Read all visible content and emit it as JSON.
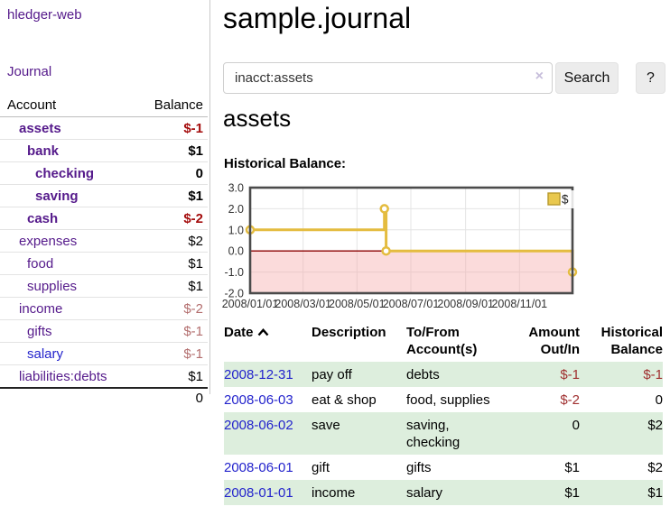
{
  "app": {
    "brand": "hledger-web",
    "nav_journal": "Journal"
  },
  "sidebar": {
    "header": {
      "account": "Account",
      "balance": "Balance"
    },
    "accounts": [
      {
        "name": "assets",
        "depth": 1,
        "bold": true,
        "link": "purple",
        "balance": "$-1",
        "balance_class": "neg-strong"
      },
      {
        "name": "bank",
        "depth": 2,
        "bold": true,
        "link": "purple",
        "balance": "$1",
        "balance_class": "pos-strong"
      },
      {
        "name": "checking",
        "depth": 3,
        "bold": true,
        "link": "purple",
        "balance": "0",
        "balance_class": "pos-strong"
      },
      {
        "name": "saving",
        "depth": 3,
        "bold": true,
        "link": "purple",
        "balance": "$1",
        "balance_class": "pos-strong"
      },
      {
        "name": "cash",
        "depth": 2,
        "bold": true,
        "link": "purple",
        "balance": "$-2",
        "balance_class": "neg-strong"
      },
      {
        "name": "expenses",
        "depth": 1,
        "bold": false,
        "link": "purple",
        "balance": "$2",
        "balance_class": ""
      },
      {
        "name": "food",
        "depth": 2,
        "bold": false,
        "link": "purple",
        "balance": "$1",
        "balance_class": ""
      },
      {
        "name": "supplies",
        "depth": 2,
        "bold": false,
        "link": "purple",
        "balance": "$1",
        "balance_class": ""
      },
      {
        "name": "income",
        "depth": 1,
        "bold": false,
        "link": "purple",
        "balance": "$-2",
        "balance_class": "neg-muted"
      },
      {
        "name": "gifts",
        "depth": 2,
        "bold": false,
        "link": "purple",
        "balance": "$-1",
        "balance_class": "neg-muted"
      },
      {
        "name": "salary",
        "depth": 2,
        "bold": false,
        "link": "blue",
        "balance": "$-1",
        "balance_class": "neg-muted"
      },
      {
        "name": "liabilities:debts",
        "depth": 1,
        "bold": false,
        "link": "purple",
        "balance": "$1",
        "balance_class": ""
      }
    ],
    "total": "0"
  },
  "header": {
    "title": "sample.journal"
  },
  "search": {
    "value": "inacct:assets",
    "clear_glyph": "×",
    "button": "Search",
    "help_button": "?"
  },
  "account_page": {
    "title": "assets",
    "chart_label": "Historical Balance:"
  },
  "chart_data": {
    "type": "line",
    "title": "Historical Balance:",
    "steps": true,
    "series": [
      {
        "name": "$",
        "color": "#e4bc3f",
        "points": [
          [
            "2008-01-01",
            1
          ],
          [
            "2008-06-01",
            2
          ],
          [
            "2008-06-03",
            0
          ],
          [
            "2008-12-31",
            -1
          ]
        ]
      }
    ],
    "x_range": [
      "2008-01-01",
      "2008-12-31"
    ],
    "ylim": [
      -2,
      3
    ],
    "yticks": [
      "3.0",
      "2.0",
      "1.0",
      "0.0",
      "-1.0",
      "-2.0"
    ],
    "xticks": [
      "2008/01/01",
      "2008/03/01",
      "2008/05/01",
      "2008/07/01",
      "2008/09/01",
      "2008/11/01"
    ],
    "grid": true,
    "legend_position": "top-right",
    "negative_region_color": "#f6aaaa",
    "zero_line_color": "#8b0000",
    "border_color": "#4b4b4b",
    "grid_color": "#e4e4e4"
  },
  "register": {
    "columns": [
      {
        "l1": "Date",
        "l2": "",
        "align": "left",
        "sortable": true
      },
      {
        "l1": "Description",
        "l2": "",
        "align": "left"
      },
      {
        "l1": "To/From",
        "l2": "Account(s)",
        "align": "left"
      },
      {
        "l1": "Amount",
        "l2": "Out/In",
        "align": "right"
      },
      {
        "l1": "Historical",
        "l2": "Balance",
        "align": "right"
      }
    ],
    "rows": [
      {
        "date": "2008-12-31",
        "description": "pay off",
        "accounts": "debts",
        "amount": "$-1",
        "amount_neg": true,
        "balance": "$-1",
        "balance_neg": true,
        "green": true
      },
      {
        "date": "2008-06-03",
        "description": "eat & shop",
        "accounts": "food, supplies",
        "amount": "$-2",
        "amount_neg": true,
        "balance": "0",
        "balance_neg": false,
        "green": false
      },
      {
        "date": "2008-06-02",
        "description": "save",
        "accounts": "saving, checking",
        "amount": "0",
        "amount_neg": false,
        "balance": "$2",
        "balance_neg": false,
        "green": true
      },
      {
        "date": "2008-06-01",
        "description": "gift",
        "accounts": "gifts",
        "amount": "$1",
        "amount_neg": false,
        "balance": "$2",
        "balance_neg": false,
        "green": false
      },
      {
        "date": "2008-01-01",
        "description": "income",
        "accounts": "salary",
        "amount": "$1",
        "amount_neg": false,
        "balance": "$1",
        "balance_neg": false,
        "green": true
      }
    ]
  }
}
